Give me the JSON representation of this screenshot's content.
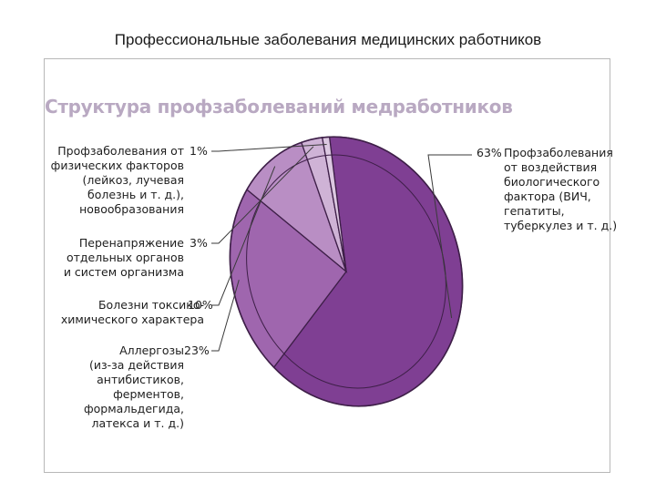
{
  "page_title": "Профессиональные заболевания медицинских работников",
  "chart_data": {
    "type": "pie",
    "title": "Структура профзаболеваний медработников",
    "slices": [
      {
        "value": 63,
        "percent_label": "63%",
        "color": "#7f3f93",
        "label_lines": [
          "Профзаболевания",
          "от воздействия",
          "биологического",
          "фактора (ВИЧ,",
          "гепатиты,",
          "туберкулез и т. д.)"
        ]
      },
      {
        "value": 23,
        "percent_label": "23%",
        "color": "#9f66ae",
        "label_lines": [
          "Аллергозы",
          "(из-за действия",
          "антибистиков,",
          "ферментов,",
          "формальдегида,",
          "латекса и т. д.)"
        ]
      },
      {
        "value": 10,
        "percent_label": "10%",
        "color": "#b98ec4",
        "label_lines": [
          "Болезни токсико-",
          "химического характера"
        ]
      },
      {
        "value": 3,
        "percent_label": "3%",
        "color": "#cfb3d6",
        "label_lines": [
          "Перенапряжение",
          "отдельных органов",
          "и систем организма"
        ]
      },
      {
        "value": 1,
        "percent_label": "1%",
        "color": "#dcc8e1",
        "label_lines": [
          "Профзаболевания от",
          "физических факторов",
          "(лейкоз, лучевая",
          "болезнь и т. д.),",
          "новообразования"
        ]
      }
    ]
  }
}
